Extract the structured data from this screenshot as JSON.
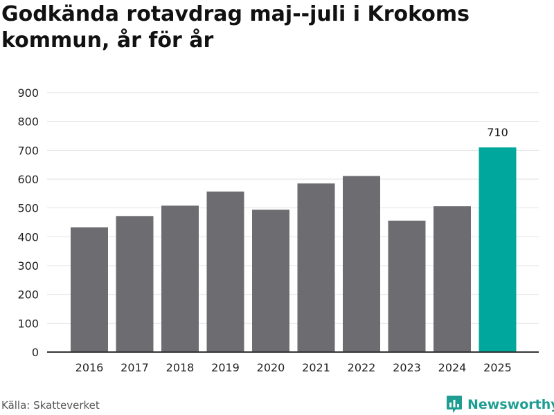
{
  "header": {
    "title": "Godkända rotavdrag maj--juli i Krokoms kommun, år för år"
  },
  "footer": {
    "source": "Källa: Skatteverket",
    "brand": "Newsworthy",
    "brand_icon": "bar-chart-logo-icon"
  },
  "colors": {
    "bar": "#6d6c70",
    "highlight": "#00a79d",
    "grid": "#e2e2e2",
    "axis": "#333333",
    "brand": "#1e9e93"
  },
  "chart_data": {
    "type": "bar",
    "title": "Godkända rotavdrag maj--juli i Krokoms kommun, år för år",
    "xlabel": "",
    "ylabel": "",
    "categories": [
      "2016",
      "2017",
      "2018",
      "2019",
      "2020",
      "2021",
      "2022",
      "2023",
      "2024",
      "2025"
    ],
    "values": [
      433,
      472,
      508,
      557,
      494,
      585,
      611,
      456,
      506,
      710
    ],
    "highlight_index": 9,
    "data_labels": [
      {
        "index": 9,
        "text": "710"
      }
    ],
    "ylim": [
      0,
      900
    ],
    "yticks": [
      0,
      100,
      200,
      300,
      400,
      500,
      600,
      700,
      800,
      900
    ],
    "grid": true,
    "legend": "none"
  }
}
